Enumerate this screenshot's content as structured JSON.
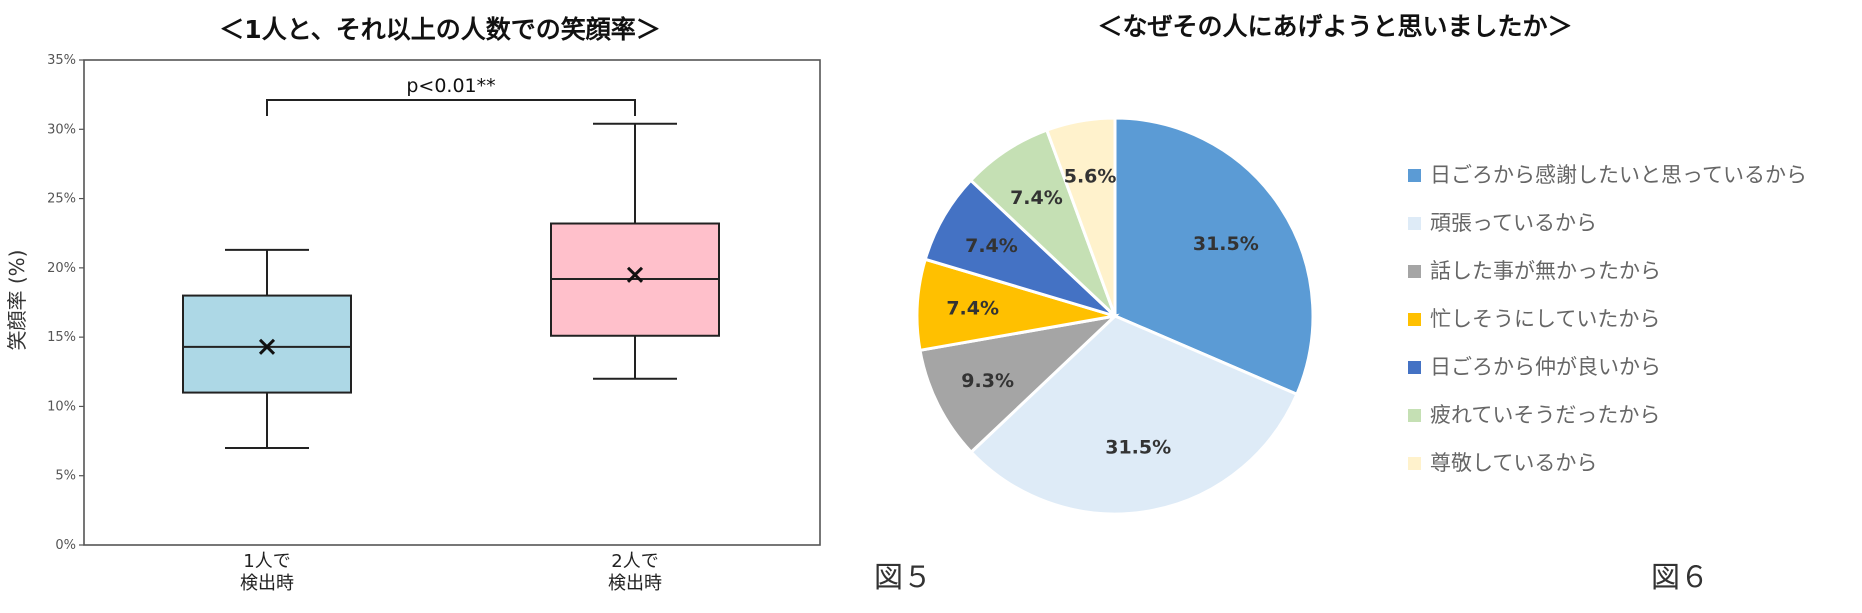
{
  "figure5": {
    "title": "＜1人と、それ以上の人数での笑顔率＞",
    "caption": "図５"
  },
  "figure6": {
    "title": "＜なぜその人にあげようと思いましたか＞",
    "caption": "図６"
  },
  "chart_data": [
    {
      "type": "box",
      "title": "＜1人と、それ以上の人数での笑顔率＞",
      "ylabel": "笑顔率 (%)",
      "ylim": [
        0,
        35
      ],
      "yticks": [
        "0%",
        "5%",
        "10%",
        "15%",
        "20%",
        "25%",
        "30%",
        "35%"
      ],
      "ytick_values": [
        0,
        5,
        10,
        15,
        20,
        25,
        30,
        35
      ],
      "categories": [
        "1人で\n検出時",
        "2人で\n検出時"
      ],
      "boxes": [
        {
          "min": 7.0,
          "q1": 11.0,
          "median": 14.3,
          "q3": 18.0,
          "max": 21.3,
          "mean": 14.3,
          "color": "#add8e6"
        },
        {
          "min": 12.0,
          "q1": 15.1,
          "median": 19.2,
          "q3": 23.2,
          "max": 30.4,
          "mean": 19.5,
          "color": "#ffc0cb"
        }
      ],
      "significance": {
        "label": "p<0.01**",
        "between": [
          0,
          1
        ]
      },
      "grid": false
    },
    {
      "type": "pie",
      "title": "＜なぜその人にあげようと思いましたか＞",
      "legend_position": "right",
      "slices": [
        {
          "label": "日ごろから感謝したいと思っているから",
          "value": 31.5,
          "display": "31.5%",
          "color": "#5b9bd5"
        },
        {
          "label": "頑張っているから",
          "value": 31.5,
          "display": "31.5%",
          "color": "#deebf7"
        },
        {
          "label": "話した事が無かったから",
          "value": 9.3,
          "display": "9.3%",
          "color": "#a5a5a5"
        },
        {
          "label": "忙しそうにしていたから",
          "value": 7.4,
          "display": "7.4%",
          "color": "#ffc000"
        },
        {
          "label": "日ごろから仲が良いから",
          "value": 7.4,
          "display": "7.4%",
          "color": "#4472c4"
        },
        {
          "label": "疲れていそうだったから",
          "value": 7.4,
          "display": "7.4%",
          "color": "#c5e0b4"
        },
        {
          "label": "尊敬しているから",
          "value": 5.6,
          "display": "5.6%",
          "color": "#fff2cc"
        }
      ]
    }
  ]
}
